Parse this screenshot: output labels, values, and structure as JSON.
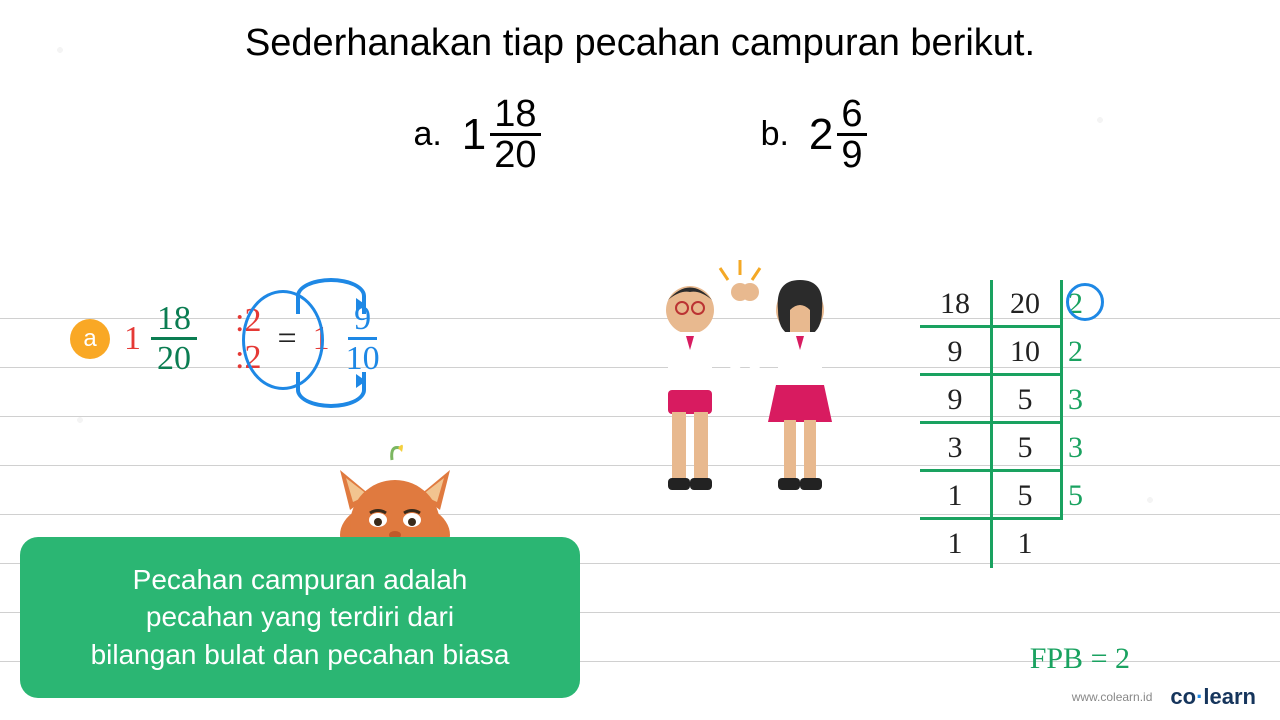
{
  "colors": {
    "headline": "#000000",
    "badge": "#f9a825",
    "red": "#e53935",
    "green": "#1aa260",
    "blue": "#1e88e5",
    "note_bg": "#2bb673",
    "note_text": "#ffffff",
    "rule_line": "#d0d0d0",
    "ladder_line": "#1aa260",
    "ladder_number": "#222222",
    "logo_text": "#16355c",
    "url_text": "#888888"
  },
  "typography": {
    "headline_fontsize": 38,
    "problem_fontsize": 34,
    "handwriting_fontsize": 30,
    "note_fontsize": 28,
    "font_family_print": "Arial, sans-serif",
    "font_family_hand": "Comic Sans MS, cursive"
  },
  "headline": "Sederhanakan tiap pecahan campuran berikut.",
  "problems": {
    "a": {
      "label": "a.",
      "whole": "1",
      "num": "18",
      "den": "20"
    },
    "b": {
      "label": "b.",
      "whole": "2",
      "num": "6",
      "den": "9"
    }
  },
  "work_a": {
    "badge": "a",
    "whole_in": "1",
    "num_in": "18",
    "den_in": "20",
    "op_top": ":2",
    "op_bot": ":2",
    "equals": "=",
    "whole_out": "1",
    "num_out": "9",
    "den_out": "10"
  },
  "note": {
    "line1": "Pecahan campuran adalah",
    "line2": "pecahan yang terdiri dari",
    "line3": "bilangan bulat dan pecahan biasa"
  },
  "ladder": {
    "circle_first_divisor": true,
    "rows": [
      {
        "a": "18",
        "b": "20",
        "d": "2"
      },
      {
        "a": "9",
        "b": "10",
        "d": "2"
      },
      {
        "a": "9",
        "b": "5",
        "d": "3"
      },
      {
        "a": "3",
        "b": "5",
        "d": "3"
      },
      {
        "a": "1",
        "b": "5",
        "d": "5"
      },
      {
        "a": "1",
        "b": "1",
        "d": ""
      }
    ],
    "fpb_label": "FPB = 2"
  },
  "footer": {
    "url": "www.colearn.id",
    "logo_a": "co",
    "logo_dot": "·",
    "logo_b": "learn"
  }
}
